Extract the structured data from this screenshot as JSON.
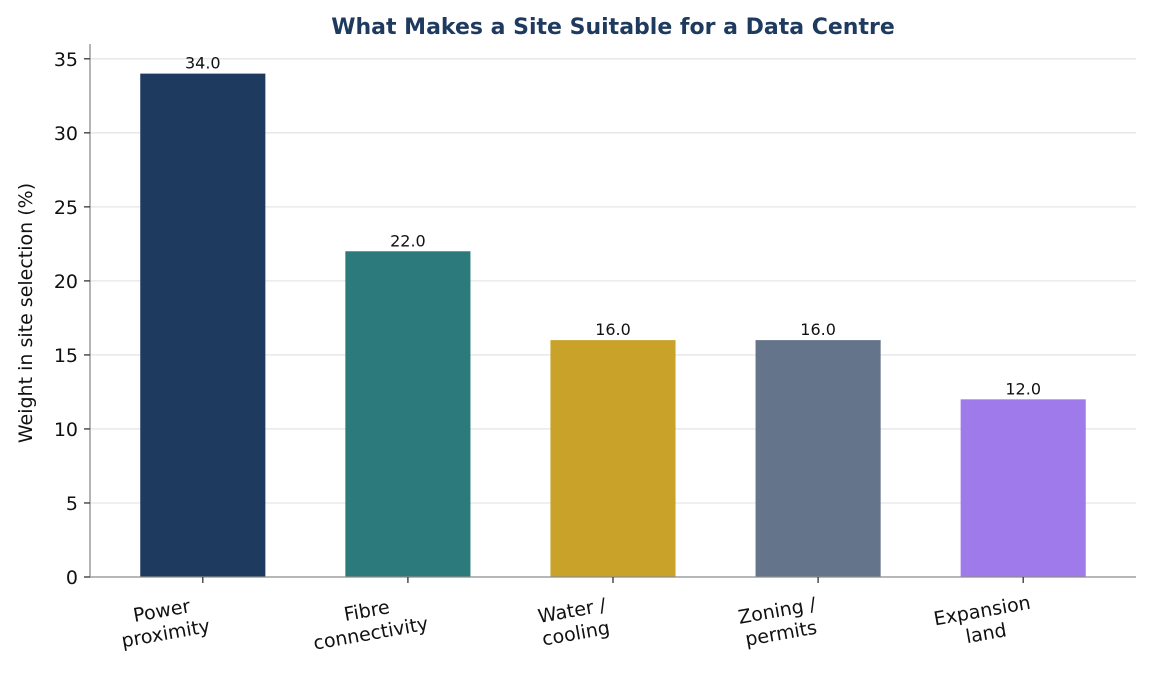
{
  "chart_data": {
    "type": "bar",
    "title": "What Makes a Site Suitable for a Data Centre",
    "xlabel": "",
    "ylabel": "Weight in site selection (%)",
    "ylim": [
      0,
      36
    ],
    "yticks": [
      0,
      5,
      10,
      15,
      20,
      25,
      30,
      35
    ],
    "grid": "horizontal",
    "categories": [
      [
        "Power",
        "proximity"
      ],
      [
        "Fibre",
        "connectivity"
      ],
      [
        "Water /",
        "cooling"
      ],
      [
        "Zoning /",
        "permits"
      ],
      [
        "Expansion",
        "land"
      ]
    ],
    "values": [
      34.0,
      22.0,
      16.0,
      16.0,
      12.0
    ],
    "value_labels": [
      "34.0",
      "22.0",
      "16.0",
      "16.0",
      "12.0"
    ],
    "colors": [
      "#1e3a5f",
      "#2c7a7b",
      "#c9a22a",
      "#64748b",
      "#9f7aea"
    ]
  }
}
